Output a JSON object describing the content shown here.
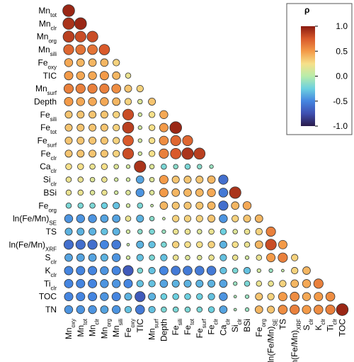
{
  "chart_data": {
    "type": "corrplot",
    "variables": [
      {
        "text": "Mn",
        "sub": "oxy"
      },
      {
        "text": "Mn",
        "sub": "tot"
      },
      {
        "text": "Mn",
        "sub": "clr"
      },
      {
        "text": "Mn",
        "sub": "org"
      },
      {
        "text": "Mn",
        "sub": "sili"
      },
      {
        "text": "Fe",
        "sub": "oxy"
      },
      {
        "text": "TIC"
      },
      {
        "text": "Mn",
        "sub": "surf"
      },
      {
        "text": "Depth"
      },
      {
        "text": "Fe",
        "sub": "sili"
      },
      {
        "text": "Fe",
        "sub": "tot"
      },
      {
        "text": "Fe",
        "sub": "surf"
      },
      {
        "text": "Fe",
        "sub": "clr"
      },
      {
        "text": "Ca",
        "sub": "clr"
      },
      {
        "text": "Si",
        "sub": "clr"
      },
      {
        "text": "BSi"
      },
      {
        "text": "Fe",
        "sub": "org"
      },
      {
        "text": "ln(Fe/Mn)",
        "sub": "SE"
      },
      {
        "text": "TS"
      },
      {
        "text": "ln(Fe/Mn)",
        "sub": "XRF"
      },
      {
        "text": "S",
        "sub": "clr"
      },
      {
        "text": "K",
        "sub": "clr"
      },
      {
        "text": "Ti",
        "sub": "clr"
      },
      {
        "text": "TOC"
      },
      {
        "text": "TN"
      }
    ],
    "values": [
      [
        0.95
      ],
      [
        0.9,
        0.95
      ],
      [
        0.85,
        0.8,
        0.8
      ],
      [
        0.7,
        0.65,
        0.65,
        0.75
      ],
      [
        0.45,
        0.4,
        0.4,
        0.4,
        0.3
      ],
      [
        0.5,
        0.45,
        0.45,
        0.5,
        0.4,
        0.2
      ],
      [
        0.6,
        0.6,
        0.6,
        0.6,
        0.55,
        0.35,
        0.3
      ],
      [
        0.5,
        0.45,
        0.45,
        0.45,
        0.4,
        0.3,
        0.15,
        0.35
      ],
      [
        0.35,
        0.35,
        0.35,
        0.35,
        0.3,
        0.8,
        0.1,
        0.25,
        0.45
      ],
      [
        0.35,
        0.35,
        0.35,
        0.35,
        0.3,
        0.85,
        0.1,
        0.25,
        0.5,
        0.95
      ],
      [
        0.35,
        0.35,
        0.35,
        0.35,
        0.3,
        0.75,
        0.1,
        0.25,
        0.55,
        0.7,
        0.7
      ],
      [
        0.35,
        0.35,
        0.35,
        0.35,
        0.3,
        0.8,
        0.1,
        0.25,
        0.6,
        0.75,
        0.9,
        0.85
      ],
      [
        0.25,
        0.25,
        0.2,
        0.25,
        0.15,
        0.1,
        0.9,
        0.15,
        -0.2,
        -0.15,
        -0.2,
        -0.15,
        -0.1
      ],
      [
        0.2,
        0.2,
        0.15,
        0.2,
        0.1,
        0.1,
        -0.4,
        0.15,
        0.5,
        0.35,
        0.35,
        0.35,
        0.4,
        -0.6
      ],
      [
        0.2,
        0.2,
        0.15,
        0.2,
        0.1,
        0.15,
        -0.45,
        0.15,
        0.5,
        0.4,
        0.4,
        0.4,
        0.45,
        -0.55,
        0.9
      ],
      [
        -0.2,
        -0.2,
        -0.2,
        -0.25,
        -0.3,
        0.1,
        -0.2,
        0.05,
        0.4,
        0.35,
        0.35,
        0.35,
        0.4,
        -0.6,
        0.4,
        0.45
      ],
      [
        -0.45,
        -0.45,
        -0.45,
        -0.4,
        -0.4,
        0.2,
        -0.35,
        -0.15,
        0.05,
        0.3,
        0.3,
        0.3,
        0.35,
        -0.45,
        0.3,
        0.35,
        0.4
      ],
      [
        -0.35,
        -0.35,
        -0.35,
        -0.3,
        -0.35,
        0.1,
        -0.15,
        -0.2,
        -0.1,
        0.2,
        0.2,
        0.15,
        0.2,
        -0.25,
        0.15,
        0.2,
        0.3,
        0.6
      ],
      [
        -0.6,
        -0.6,
        -0.6,
        -0.5,
        -0.55,
        0.05,
        -0.35,
        -0.3,
        -0.2,
        0.3,
        0.25,
        0.25,
        0.3,
        -0.35,
        0.25,
        0.2,
        0.4,
        0.8,
        0.5
      ],
      [
        -0.4,
        -0.4,
        -0.4,
        -0.35,
        -0.45,
        0.1,
        -0.3,
        -0.2,
        -0.3,
        0.2,
        0.15,
        0.15,
        0.2,
        -0.3,
        0.2,
        0.1,
        0.2,
        0.5,
        0.6,
        0.3
      ],
      [
        -0.5,
        -0.5,
        -0.5,
        -0.45,
        -0.5,
        -0.7,
        -0.2,
        -0.3,
        -0.5,
        -0.55,
        -0.55,
        -0.55,
        -0.55,
        -0.3,
        -0.2,
        -0.3,
        0.1,
        -0.1,
        0.05,
        0.3,
        0.4
      ],
      [
        -0.5,
        -0.5,
        -0.5,
        -0.45,
        -0.45,
        -0.5,
        -0.3,
        -0.3,
        -0.4,
        -0.35,
        -0.35,
        -0.35,
        -0.35,
        -0.4,
        -0.1,
        -0.2,
        0.2,
        0.2,
        0.3,
        0.4,
        0.45,
        0.6
      ],
      [
        -0.5,
        -0.5,
        -0.5,
        -0.45,
        -0.5,
        -0.35,
        -0.7,
        -0.35,
        -0.25,
        -0.25,
        -0.25,
        -0.25,
        -0.3,
        -0.45,
        -0.05,
        -0.1,
        0.35,
        0.3,
        0.5,
        0.55,
        0.45,
        0.5,
        0.55
      ],
      [
        -0.45,
        -0.45,
        -0.45,
        -0.4,
        -0.45,
        -0.3,
        -0.55,
        -0.3,
        -0.2,
        -0.2,
        -0.2,
        -0.2,
        -0.25,
        -0.4,
        -0.05,
        -0.1,
        0.4,
        0.35,
        0.55,
        0.6,
        0.5,
        0.55,
        0.6,
        0.95
      ]
    ],
    "legend_title": "ρ",
    "clim": [
      -1,
      1
    ],
    "cticks": [
      {
        "value": 1,
        "label": "1.0"
      },
      0.5,
      {
        "value": 0,
        "label": "0.0"
      },
      -0.5,
      {
        "value": -1,
        "label": "-1.0"
      }
    ],
    "colorscale": [
      {
        "value": -1,
        "color": "#2a1a4a"
      },
      {
        "value": -0.75,
        "color": "#3f4fb0"
      },
      {
        "value": -0.5,
        "color": "#4585e0"
      },
      {
        "value": -0.25,
        "color": "#6cd0e0"
      },
      {
        "value": 0,
        "color": "#b8ecaa"
      },
      {
        "value": 0.25,
        "color": "#f6e08a"
      },
      {
        "value": 0.5,
        "color": "#f39a48"
      },
      {
        "value": 0.75,
        "color": "#d95a2b"
      },
      {
        "value": 1,
        "color": "#8a1a10"
      }
    ]
  }
}
